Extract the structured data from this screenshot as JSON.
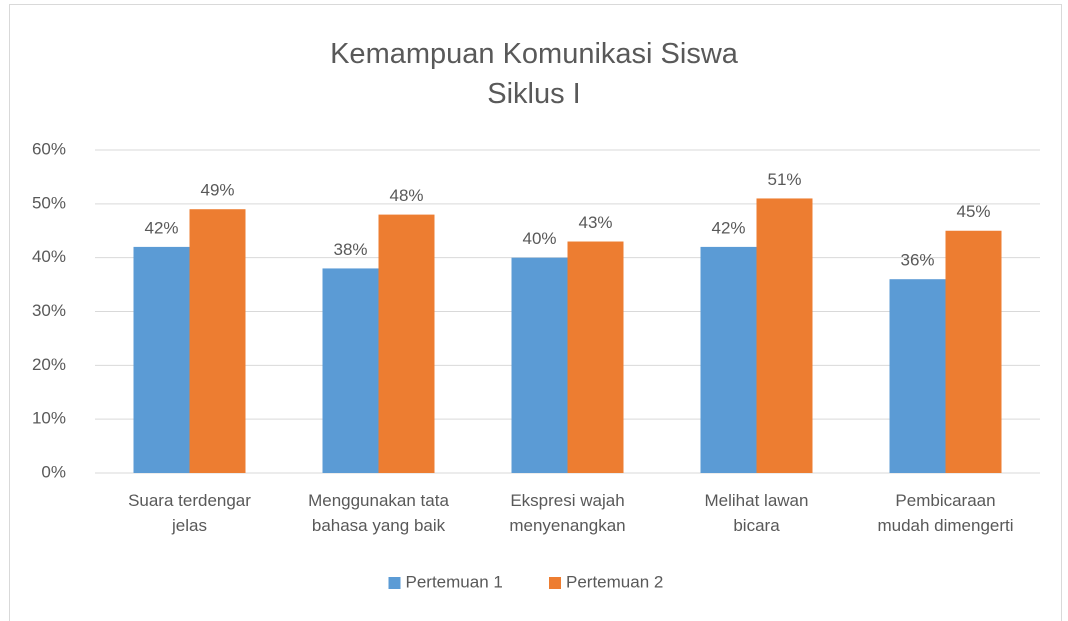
{
  "chart_data": {
    "type": "bar",
    "title": "Kemampuan Komunikasi Siswa Siklus I",
    "categories": [
      "Suara terdengar jelas",
      "Menggunakan tata bahasa yang baik",
      "Ekspresi wajah menyenangkan",
      "Melihat lawan bicara",
      "Pembicaraan mudah dimengerti"
    ],
    "series": [
      {
        "name": "Pertemuan 1",
        "color": "#5b9bd5",
        "values": [
          42,
          38,
          40,
          42,
          36
        ],
        "value_labels": [
          "42%",
          "38%",
          "40%",
          "42%",
          "36%"
        ]
      },
      {
        "name": "Pertemuan 2",
        "color": "#ed7d31",
        "values": [
          49,
          48,
          43,
          51,
          45
        ],
        "value_labels": [
          "49%",
          "48%",
          "43%",
          "51%",
          "45%"
        ]
      }
    ],
    "ylim": [
      0,
      60
    ],
    "yticks": [
      {
        "value": 0,
        "label": "0%"
      },
      {
        "value": 10,
        "label": "10%"
      },
      {
        "value": 20,
        "label": "20%"
      },
      {
        "value": 30,
        "label": "30%"
      },
      {
        "value": 40,
        "label": "40%"
      },
      {
        "value": 50,
        "label": "50%"
      },
      {
        "value": 60,
        "label": "60%"
      }
    ],
    "grid": true,
    "legend": "bottom"
  }
}
